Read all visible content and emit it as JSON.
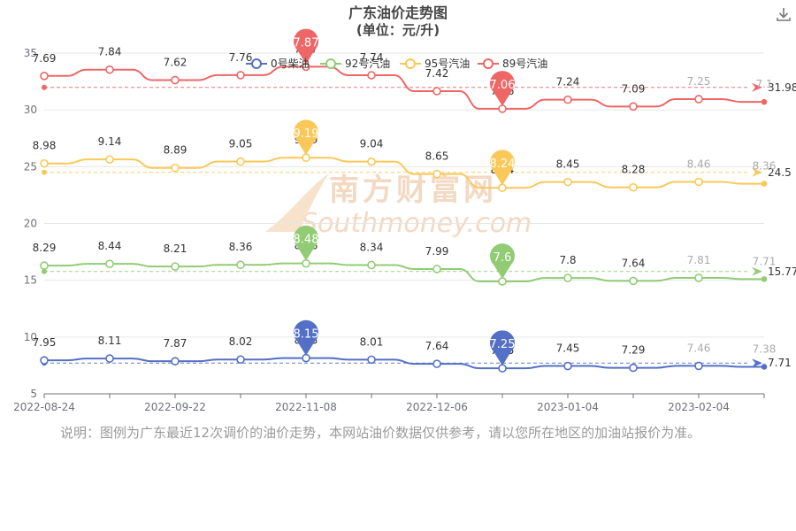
{
  "header": {
    "title": "广东油价走势图",
    "subtitle": "(单位：元/升)"
  },
  "note": "说明：图例为广东最近12次调价的油价走势，本网站油价数据仅供参考，请以您所在地区的加油站报价为准。",
  "watermark": {
    "cn": "南方财富网",
    "en": "Southmoney.com"
  },
  "toolbar": {
    "download_icon": "download-icon"
  },
  "chart_data": {
    "type": "line",
    "title": "广东油价走势图",
    "subtitle": "(单位：元/升)",
    "x_tick_labels": [
      "2022-08-24",
      "2022-09-22",
      "2022-11-08",
      "2022-12-06",
      "2023-01-04",
      "2023-02-04"
    ],
    "y_ticks": [
      5,
      10,
      15,
      20,
      25,
      30,
      35
    ],
    "ylim": [
      5,
      35
    ],
    "grid": "horizontal",
    "legend_position": "top",
    "series": [
      {
        "name": "0号柴油",
        "color": "#5470c6",
        "plotted": [
          7.95,
          8.11,
          7.87,
          8.02,
          8.15,
          8.01,
          7.64,
          7.25,
          7.45,
          7.29,
          7.46,
          7.38
        ],
        "labels": [
          "7.95",
          "8.11",
          "7.87",
          "8.02",
          "8.15",
          "8.01",
          "7.64",
          "7.25",
          "7.45",
          "7.29",
          "7.46",
          "7.38"
        ],
        "max_pin": "8.15",
        "min_pin": "7.25",
        "avg": "7.71",
        "avg_plotted": 7.71
      },
      {
        "name": "92号汽油",
        "color": "#91cc75",
        "plotted": [
          16.29,
          16.44,
          16.21,
          16.36,
          16.48,
          16.34,
          15.99,
          14.9,
          15.2,
          14.94,
          15.21,
          15.1
        ],
        "labels": [
          "8.29",
          "8.44",
          "8.21",
          "8.36",
          "8.48",
          "8.34",
          "7.99",
          "7.6",
          "7.8",
          "7.64",
          "7.81",
          "7.71"
        ],
        "max_pin": "8.48",
        "min_pin": "7.6",
        "avg": "15.77",
        "avg_plotted": 15.77
      },
      {
        "name": "95号汽油",
        "color": "#fac858",
        "plotted": [
          25.28,
          25.64,
          24.89,
          25.45,
          25.79,
          25.44,
          24.35,
          23.14,
          23.65,
          23.18,
          23.66,
          23.5
        ],
        "labels": [
          "8.98",
          "9.14",
          "8.89",
          "9.05",
          "9.19",
          "9.04",
          "8.65",
          "8.24",
          "8.45",
          "8.28",
          "8.46",
          "8.36"
        ],
        "max_pin": "9.19",
        "min_pin": "8.24",
        "avg": "24.5",
        "avg_plotted": 24.5
      },
      {
        "name": "89号汽油",
        "color": "#ee6666",
        "plotted": [
          32.99,
          33.54,
          32.62,
          33.06,
          33.8,
          33.05,
          31.65,
          30.1,
          30.9,
          30.3,
          30.95,
          30.7
        ],
        "labels": [
          "7.69",
          "7.84",
          "7.62",
          "7.76",
          "7.87",
          "7.74",
          "7.42",
          "7.06",
          "7.24",
          "7.09",
          "7.25",
          "7.1"
        ],
        "max_pin": "7.87",
        "min_pin": "7.06",
        "avg": "31.98",
        "avg_plotted": 31.98
      }
    ]
  }
}
